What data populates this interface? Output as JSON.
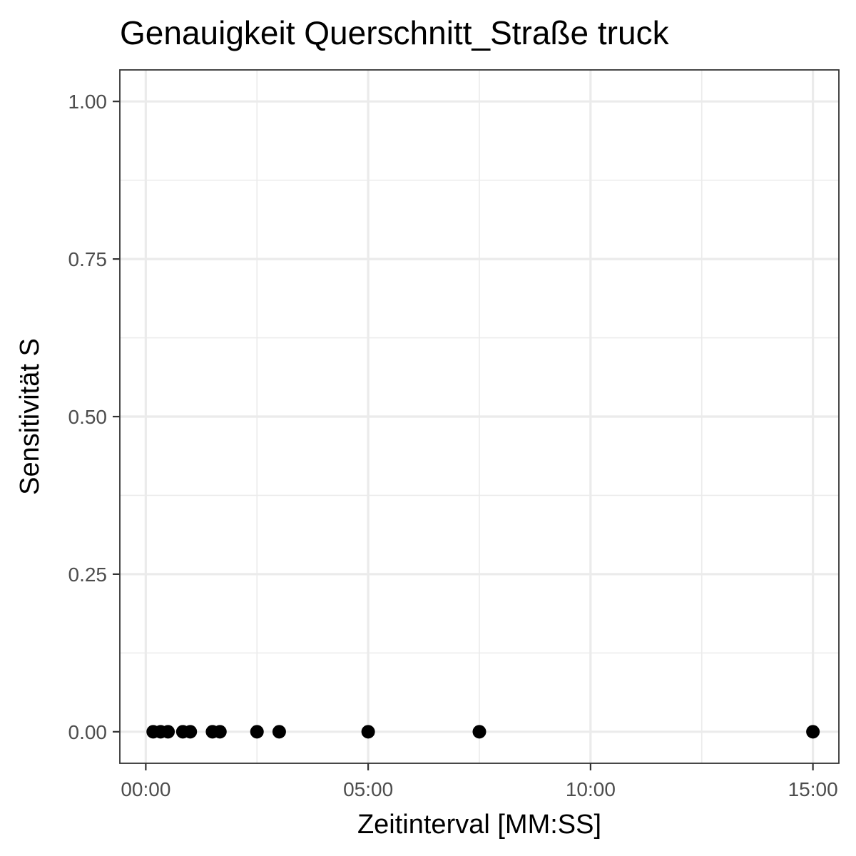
{
  "chart_data": {
    "type": "scatter",
    "title": "Genauigkeit Querschnitt_Straße truck",
    "xlabel": "Zeitinterval [MM:SS]",
    "ylabel": "Sensitivität S",
    "x_unit": "MM:SS",
    "xlim": [
      "-00:35",
      "15:35"
    ],
    "ylim": [
      -0.05,
      1.05
    ],
    "x_ticks": [
      "00:00",
      "05:00",
      "10:00",
      "15:00"
    ],
    "y_ticks": [
      0.0,
      0.25,
      0.5,
      0.75,
      1.0
    ],
    "y_tick_labels": [
      "0.00",
      "0.25",
      "0.50",
      "0.75",
      "1.00"
    ],
    "grid": true,
    "legend": "none",
    "colors": {
      "points": "#000000",
      "grid": "#ebebeb",
      "panel_border": "#333333",
      "tick_text": "#4d4d4d"
    },
    "points": [
      {
        "x": "00:10",
        "y": 0.0
      },
      {
        "x": "00:20",
        "y": 0.0
      },
      {
        "x": "00:30",
        "y": 0.0
      },
      {
        "x": "00:50",
        "y": 0.0
      },
      {
        "x": "01:00",
        "y": 0.0
      },
      {
        "x": "01:30",
        "y": 0.0
      },
      {
        "x": "01:40",
        "y": 0.0
      },
      {
        "x": "02:30",
        "y": 0.0
      },
      {
        "x": "03:00",
        "y": 0.0
      },
      {
        "x": "05:00",
        "y": 0.0
      },
      {
        "x": "07:30",
        "y": 0.0
      },
      {
        "x": "15:00",
        "y": 0.0
      }
    ]
  }
}
